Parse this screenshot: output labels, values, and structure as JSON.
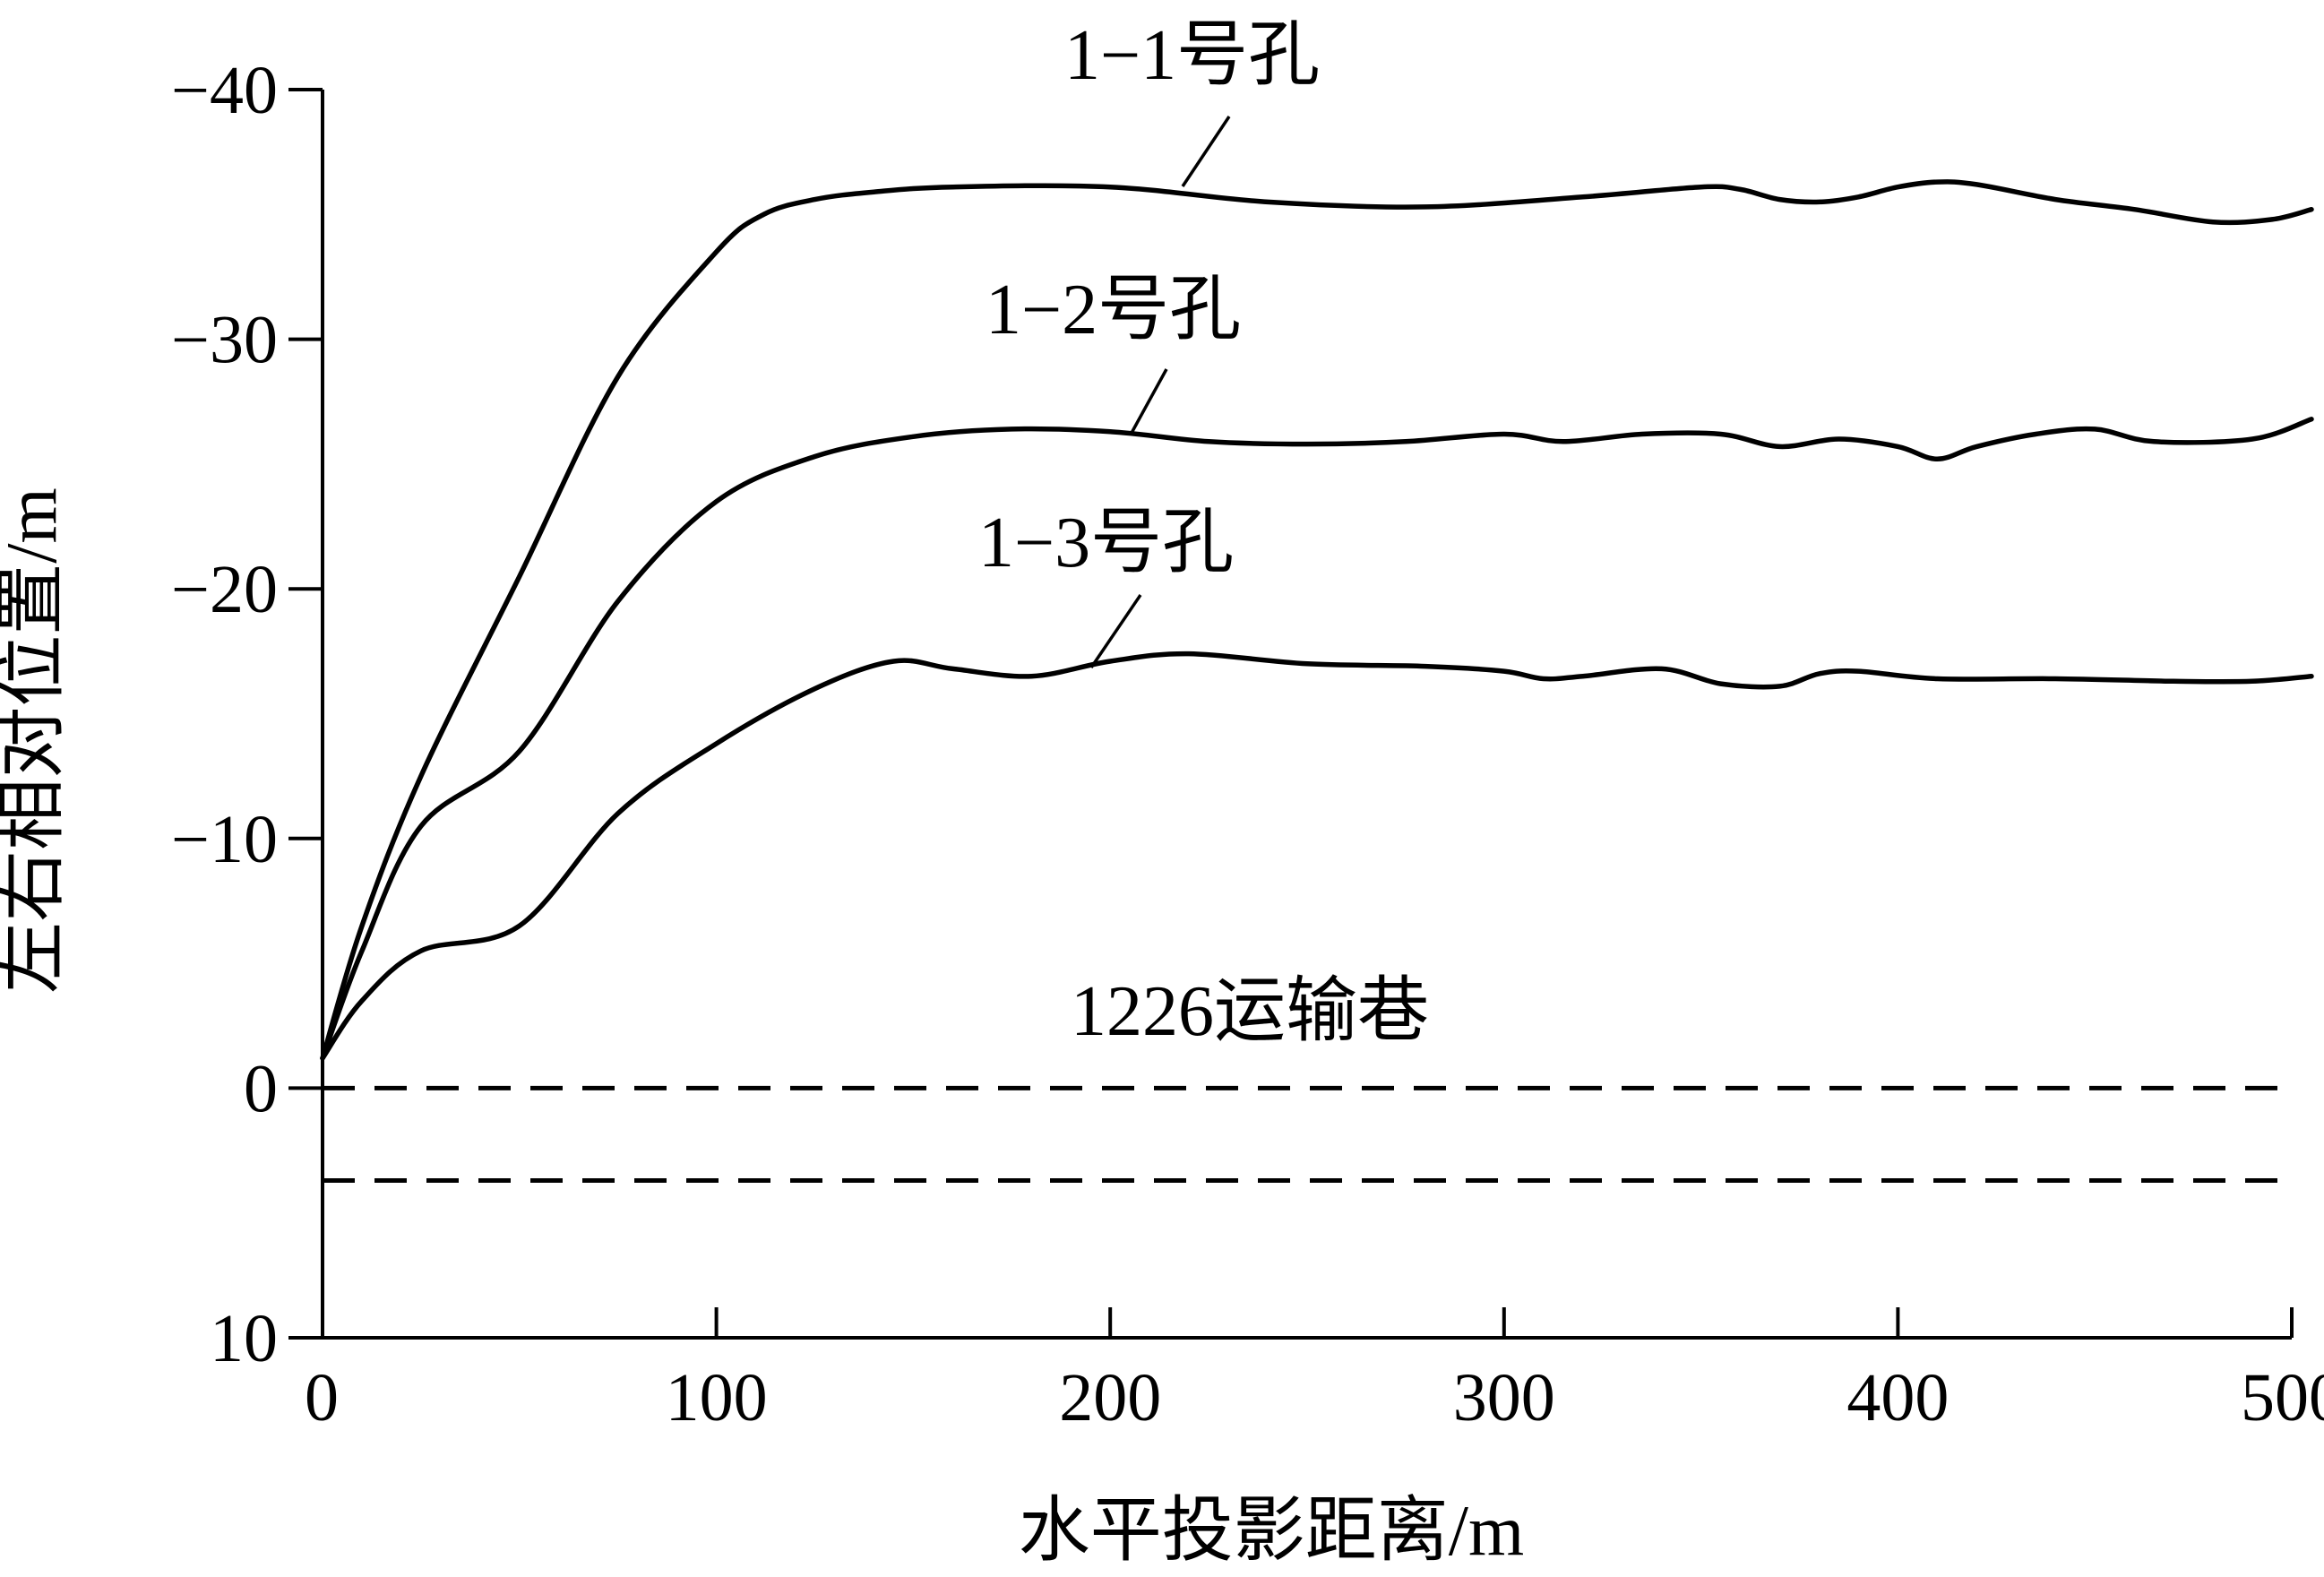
{
  "chart_data": {
    "type": "line",
    "xlabel": "水平投影距离/m",
    "ylabel": "左右相对位置/m",
    "xlim": [
      0,
      500
    ],
    "ylim": [
      10,
      -40
    ],
    "y_axis_inverted": true,
    "xticks": [
      0,
      100,
      200,
      300,
      400,
      500
    ],
    "xtick_labels": [
      "0",
      "100",
      "200",
      "300",
      "400",
      "500"
    ],
    "yticks": [
      -40,
      -30,
      -20,
      -10,
      0,
      10
    ],
    "ytick_labels": [
      "−40",
      "−30",
      "−20",
      "−10",
      "0",
      "10"
    ],
    "grid": false,
    "series": [
      {
        "name": "1-1号孔",
        "label": "1−1号孔",
        "style": "solid",
        "x": [
          0,
          10,
          25,
          50,
          75,
          100,
          112,
          125,
          140,
          160,
          200,
          240,
          280,
          320,
          350,
          360,
          370,
          380,
          390,
          400,
          410,
          420,
          440,
          460,
          480,
          495,
          505
        ],
        "y": [
          -1.2,
          -6.5,
          -12.5,
          -20.5,
          -28.5,
          -33.5,
          -35,
          -35.6,
          -35.9,
          -36.1,
          -36.1,
          -35.5,
          -35.3,
          -35.7,
          -36.1,
          -36.0,
          -35.6,
          -35.5,
          -35.7,
          -36.1,
          -36.3,
          -36.2,
          -35.6,
          -35.2,
          -34.7,
          -34.8,
          -35.2
        ]
      },
      {
        "name": "1-2号孔",
        "label": "1−2号孔",
        "style": "solid",
        "x": [
          0,
          10,
          25,
          50,
          75,
          100,
          125,
          150,
          175,
          200,
          225,
          250,
          275,
          300,
          315,
          335,
          355,
          370,
          385,
          400,
          410,
          420,
          435,
          450,
          465,
          490,
          505
        ],
        "y": [
          -1.2,
          -5.5,
          -10.5,
          -13.5,
          -19.5,
          -23.5,
          -25.3,
          -26.1,
          -26.4,
          -26.3,
          -25.9,
          -25.8,
          -25.9,
          -26.2,
          -25.9,
          -26.2,
          -26.2,
          -25.7,
          -26.0,
          -25.7,
          -25.2,
          -25.7,
          -26.2,
          -26.4,
          -25.9,
          -26.0,
          -26.8
        ]
      },
      {
        "name": "1-3号孔",
        "label": "1−3号孔",
        "style": "solid",
        "x": [
          0,
          10,
          25,
          50,
          75,
          100,
          125,
          145,
          160,
          180,
          200,
          220,
          250,
          280,
          300,
          310,
          320,
          340,
          355,
          370,
          380,
          390,
          410,
          440,
          470,
          490,
          505
        ],
        "y": [
          -1.2,
          -3.5,
          -5.5,
          -6.5,
          -11.0,
          -13.8,
          -16.0,
          -17.1,
          -16.8,
          -16.5,
          -17.1,
          -17.4,
          -17.0,
          -16.9,
          -16.7,
          -16.4,
          -16.5,
          -16.8,
          -16.2,
          -16.1,
          -16.6,
          -16.7,
          -16.4,
          -16.4,
          -16.3,
          -16.3,
          -16.5
        ]
      }
    ],
    "reference_lines": [
      {
        "label": "1226运输巷",
        "style": "dashed",
        "y": 0
      },
      {
        "label": "",
        "style": "dashed",
        "y": 3.7
      }
    ],
    "annotations": [
      {
        "text": "1−1号孔",
        "series": "1-1号孔"
      },
      {
        "text": "1−2号孔",
        "series": "1-2号孔"
      },
      {
        "text": "1−3号孔",
        "series": "1-3号孔"
      },
      {
        "text": "1226运输巷"
      }
    ]
  }
}
